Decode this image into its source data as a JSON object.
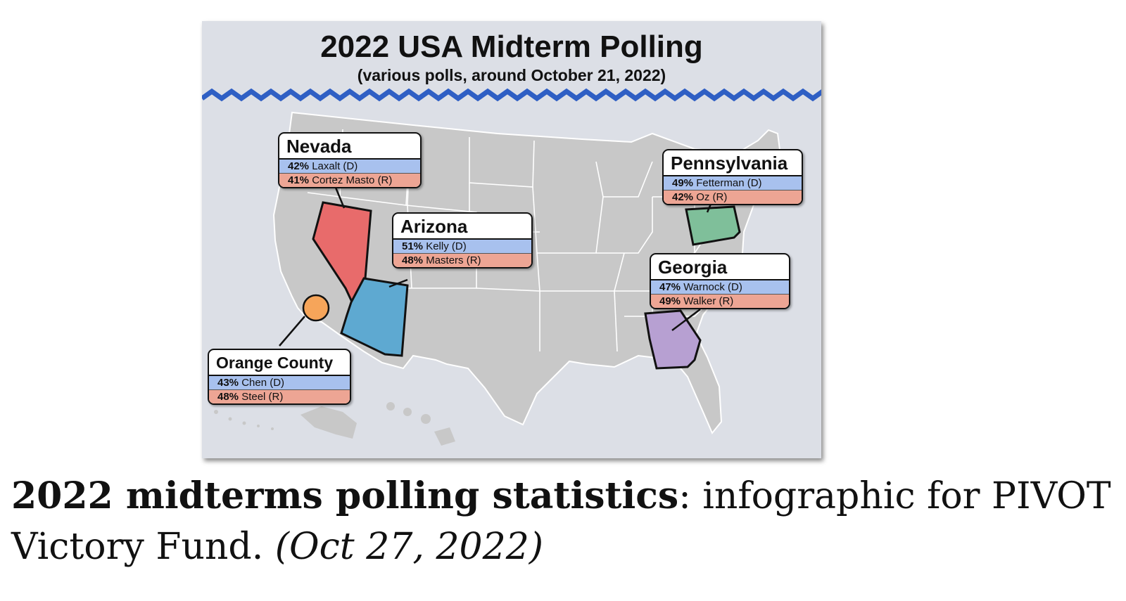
{
  "infographic": {
    "title": "2022 USA Midterm Polling",
    "subtitle": "(various polls, around October 21, 2022)",
    "colors": {
      "background": "#dcdfe6",
      "land": "#c8c8c8",
      "wave": "#2f5fc4",
      "democrat_row": "#a8c1ee",
      "republican_row": "#eda594",
      "nevada": "#e86b6b",
      "arizona": "#5ea9d1",
      "pennsylvania": "#7fbf9a",
      "georgia": "#b7a0d2",
      "orange_county": "#f6a55a"
    },
    "races": {
      "nevada": {
        "name": "Nevada",
        "d": {
          "pct": "42%",
          "candidate": "Laxalt (D)"
        },
        "r": {
          "pct": "41%",
          "candidate": "Cortez Masto (R)"
        }
      },
      "arizona": {
        "name": "Arizona",
        "d": {
          "pct": "51%",
          "candidate": "Kelly (D)"
        },
        "r": {
          "pct": "48%",
          "candidate": "Masters (R)"
        }
      },
      "pennsylvania": {
        "name": "Pennsylvania",
        "d": {
          "pct": "49%",
          "candidate": "Fetterman (D)"
        },
        "r": {
          "pct": "42%",
          "candidate": "Oz (R)"
        }
      },
      "georgia": {
        "name": "Georgia",
        "d": {
          "pct": "47%",
          "candidate": "Warnock (D)"
        },
        "r": {
          "pct": "49%",
          "candidate": "Walker (R)"
        }
      },
      "orange_county": {
        "name": "Orange County",
        "d": {
          "pct": "43%",
          "candidate": "Chen (D)"
        },
        "r": {
          "pct": "48%",
          "candidate": "Steel (R)"
        }
      }
    }
  },
  "caption": {
    "bold": "2022 midterms polling statistics",
    "normal": ": infographic for PIVOT Victory Fund. ",
    "italic": "(Oct 27, 2022)"
  }
}
